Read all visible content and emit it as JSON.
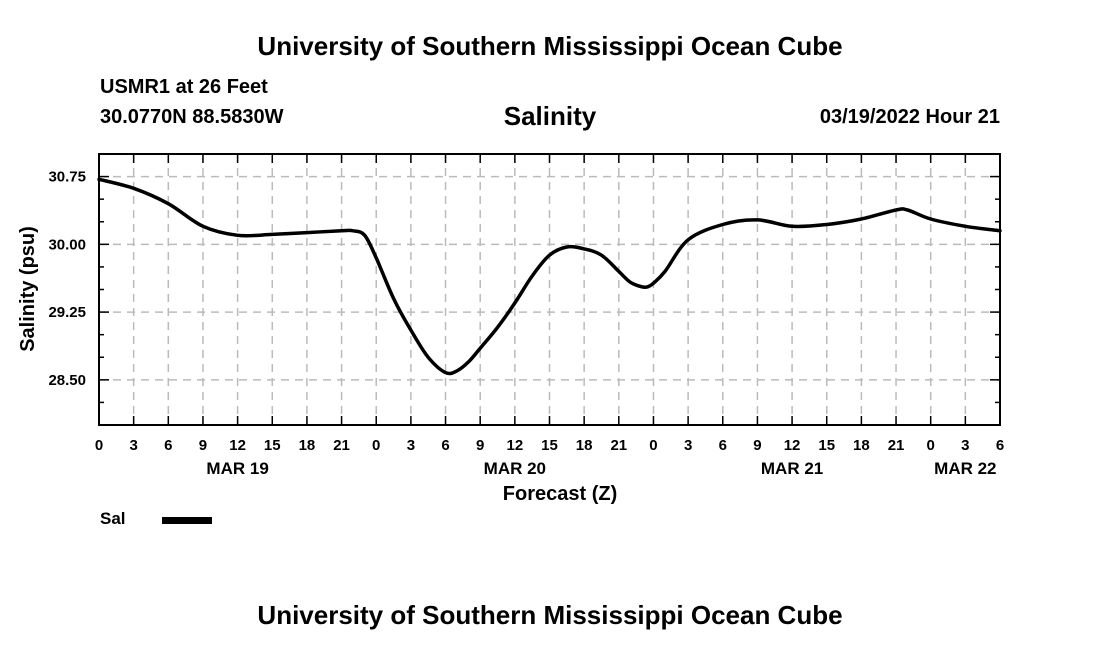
{
  "page_title": "University of Southern Mississippi Ocean Cube",
  "footer_title": "University of Southern Mississippi Ocean Cube",
  "station": {
    "name_depth": "USMR1 at 26 Feet",
    "coordinates": "30.0770N  88.5830W"
  },
  "timestamp": "03/19/2022 Hour 21",
  "line_color": "#000000",
  "grid_color": "#bbbbbb",
  "chart_data": {
    "type": "line",
    "title": "Salinity",
    "xlabel": "Forecast (Z)",
    "ylabel": "Salinity (psu)",
    "xlim": [
      0,
      78
    ],
    "ylim": [
      28.0,
      31.0
    ],
    "grid": true,
    "y_ticks": [
      {
        "value": 30.75,
        "label": "30.75"
      },
      {
        "value": 30.0,
        "label": "30.00"
      },
      {
        "value": 29.25,
        "label": "29.25"
      },
      {
        "value": 28.5,
        "label": "28.50"
      }
    ],
    "y_minor_ticks": [
      28.25,
      28.75,
      29.0,
      29.5,
      29.75,
      30.25,
      30.5
    ],
    "x_ticks": [
      {
        "value": 0,
        "label": "0"
      },
      {
        "value": 3,
        "label": "3"
      },
      {
        "value": 6,
        "label": "6"
      },
      {
        "value": 9,
        "label": "9"
      },
      {
        "value": 12,
        "label": "12"
      },
      {
        "value": 15,
        "label": "15"
      },
      {
        "value": 18,
        "label": "18"
      },
      {
        "value": 21,
        "label": "21"
      },
      {
        "value": 24,
        "label": "0"
      },
      {
        "value": 27,
        "label": "3"
      },
      {
        "value": 30,
        "label": "6"
      },
      {
        "value": 33,
        "label": "9"
      },
      {
        "value": 36,
        "label": "12"
      },
      {
        "value": 39,
        "label": "15"
      },
      {
        "value": 42,
        "label": "18"
      },
      {
        "value": 45,
        "label": "21"
      },
      {
        "value": 48,
        "label": "0"
      },
      {
        "value": 51,
        "label": "3"
      },
      {
        "value": 54,
        "label": "6"
      },
      {
        "value": 57,
        "label": "9"
      },
      {
        "value": 60,
        "label": "12"
      },
      {
        "value": 63,
        "label": "15"
      },
      {
        "value": 66,
        "label": "18"
      },
      {
        "value": 69,
        "label": "21"
      },
      {
        "value": 72,
        "label": "0"
      },
      {
        "value": 75,
        "label": "3"
      },
      {
        "value": 78,
        "label": "6"
      }
    ],
    "date_labels": [
      {
        "value": 12,
        "label": "MAR 19"
      },
      {
        "value": 36,
        "label": "MAR 20"
      },
      {
        "value": 60,
        "label": "MAR 21"
      },
      {
        "value": 75,
        "label": "MAR 22"
      }
    ],
    "series": [
      {
        "name": "Sal",
        "x": [
          0,
          3,
          6,
          9,
          12,
          15,
          18,
          21,
          22,
          23,
          24,
          25.5,
          27,
          28.5,
          30,
          31,
          32,
          33,
          34.5,
          36,
          37.5,
          39,
          40.5,
          42,
          43.5,
          45,
          46,
          47,
          47.5,
          48,
          49,
          51,
          54,
          57,
          60,
          63,
          66,
          69,
          70,
          72,
          75,
          78
        ],
        "y": [
          30.72,
          30.62,
          30.45,
          30.2,
          30.1,
          30.11,
          30.13,
          30.15,
          30.15,
          30.1,
          29.85,
          29.4,
          29.05,
          28.75,
          28.58,
          28.6,
          28.7,
          28.85,
          29.08,
          29.35,
          29.65,
          29.88,
          29.97,
          29.95,
          29.88,
          29.7,
          29.58,
          29.53,
          29.53,
          29.57,
          29.7,
          30.05,
          30.22,
          30.27,
          30.2,
          30.22,
          30.28,
          30.38,
          30.38,
          30.28,
          30.2,
          30.15
        ]
      }
    ],
    "legend": [
      {
        "label": "Sal",
        "position": "bottom-left"
      }
    ]
  }
}
